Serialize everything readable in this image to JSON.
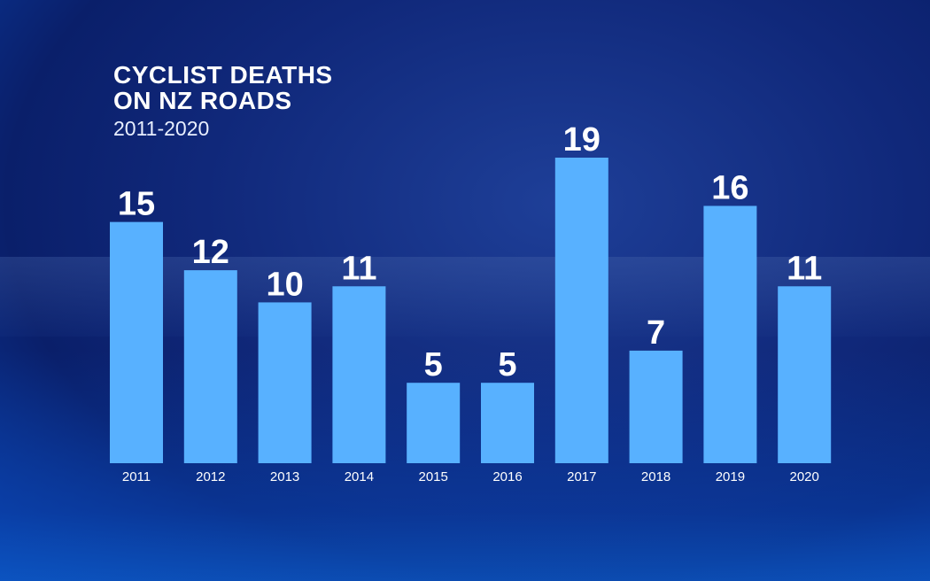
{
  "header": {
    "title": "CYCLIST DEATHS\nON NZ ROADS",
    "subtitle": "2011-2020"
  },
  "colors": {
    "bar": "#58b1ff",
    "background": "#10287a",
    "text": "#ffffff"
  },
  "chart_data": {
    "type": "bar",
    "title": "CYCLIST DEATHS ON NZ ROADS",
    "subtitle": "2011-2020",
    "categories": [
      "2011",
      "2012",
      "2013",
      "2014",
      "2015",
      "2016",
      "2017",
      "2018",
      "2019",
      "2020"
    ],
    "values": [
      15,
      12,
      10,
      11,
      5,
      5,
      19,
      7,
      16,
      11
    ],
    "xlabel": "",
    "ylabel": "",
    "ylim": [
      0,
      19
    ],
    "grid": false,
    "legend": "none",
    "data_labels": true
  }
}
